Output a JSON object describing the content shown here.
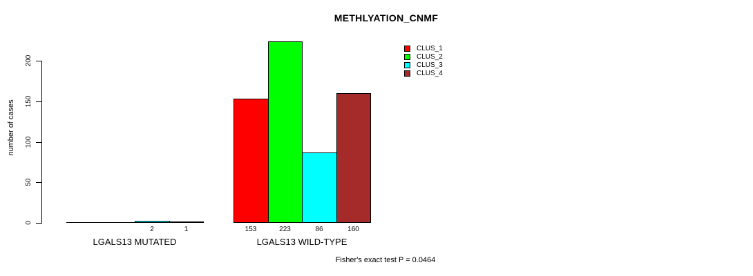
{
  "page": {
    "background_color": "#ffffff",
    "text_color": "#000000"
  },
  "chart_data": {
    "type": "bar",
    "title": "METHLYATION_CNMF",
    "xlabel": "",
    "ylabel": "number of cases",
    "groups": [
      {
        "label": "LGALS13 MUTATED"
      },
      {
        "label": "LGALS13 WILD-TYPE"
      }
    ],
    "series": [
      {
        "name": "CLUS_1",
        "color": "#FF0000",
        "values": [
          0,
          153
        ]
      },
      {
        "name": "CLUS_2",
        "color": "#00FF00",
        "values": [
          0,
          223
        ]
      },
      {
        "name": "CLUS_3",
        "color": "#00FFFF",
        "values": [
          2,
          86
        ]
      },
      {
        "name": "CLUS_4",
        "color": "#A52A2A",
        "values": [
          1,
          160
        ]
      }
    ],
    "bar_value_labels": {
      "LGALS13 MUTATED": [
        null,
        null,
        "2",
        "1"
      ],
      "LGALS13 WILD-TYPE": [
        "153",
        "223",
        "86",
        "160"
      ]
    },
    "yticks": [
      0,
      50,
      100,
      150,
      200
    ],
    "ylim": [
      0,
      230
    ],
    "grid": false,
    "legend": {
      "position": "top-right",
      "entries": [
        "CLUS_1",
        "CLUS_2",
        "CLUS_3",
        "CLUS_4"
      ]
    },
    "footnote": "Fisher's exact test P = 0.0464"
  }
}
